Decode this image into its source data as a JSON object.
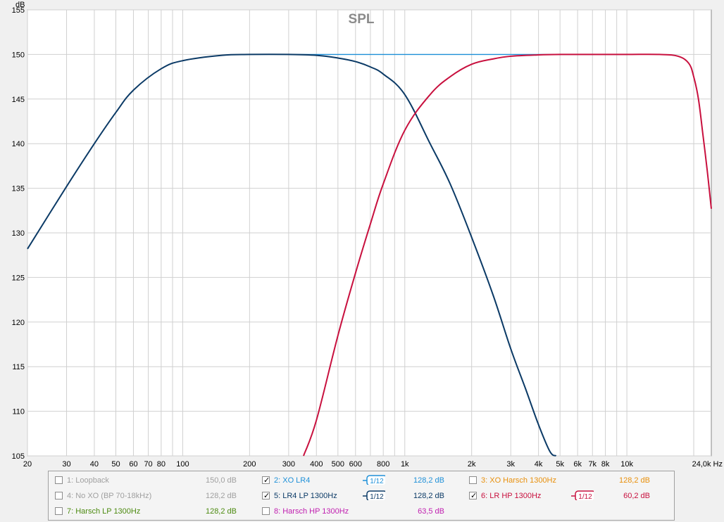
{
  "chart_data": {
    "type": "line",
    "title": "SPL",
    "ylabel": "dB",
    "xunit": "Hz",
    "xscale": "log",
    "xlim": [
      20,
      24000
    ],
    "ylim": [
      105,
      155
    ],
    "yticks": [
      105,
      110,
      115,
      120,
      125,
      130,
      135,
      140,
      145,
      150,
      155
    ],
    "xticks": [
      {
        "value": 20,
        "label": "20"
      },
      {
        "value": 30,
        "label": "30"
      },
      {
        "value": 40,
        "label": "40"
      },
      {
        "value": 50,
        "label": "50"
      },
      {
        "value": 60,
        "label": "60"
      },
      {
        "value": 70,
        "label": "70"
      },
      {
        "value": 80,
        "label": "80"
      },
      {
        "value": 100,
        "label": "100"
      },
      {
        "value": 200,
        "label": "200"
      },
      {
        "value": 300,
        "label": "300"
      },
      {
        "value": 400,
        "label": "400"
      },
      {
        "value": 500,
        "label": "500"
      },
      {
        "value": 600,
        "label": "600"
      },
      {
        "value": 800,
        "label": "800"
      },
      {
        "value": 1000,
        "label": "1k"
      },
      {
        "value": 2000,
        "label": "2k"
      },
      {
        "value": 3000,
        "label": "3k"
      },
      {
        "value": 4000,
        "label": "4k"
      },
      {
        "value": 5000,
        "label": "5k"
      },
      {
        "value": 6000,
        "label": "6k"
      },
      {
        "value": 7000,
        "label": "7k"
      },
      {
        "value": 8000,
        "label": "8k"
      },
      {
        "value": 10000,
        "label": "10k"
      },
      {
        "value": 24000,
        "label": "24,0k Hz"
      }
    ],
    "grid": true,
    "series": [
      {
        "name": "2: XO LR4",
        "color": "#1e90d8",
        "x": [
          300,
          500,
          1000,
          2000,
          5000,
          10000
        ],
        "y": [
          150.0,
          150.0,
          150.0,
          150.0,
          150.0,
          150.0
        ]
      },
      {
        "name": "5: LR4 LP 1300Hz",
        "color": "#0b3a66",
        "x": [
          20,
          30,
          40,
          50,
          60,
          80,
          100,
          150,
          200,
          300,
          400,
          500,
          600,
          700,
          800,
          1000,
          1300,
          1600,
          2000,
          2500,
          3000,
          3500,
          4000,
          4500,
          4800
        ],
        "y": [
          128.2,
          135.2,
          140.0,
          143.5,
          146.0,
          148.4,
          149.3,
          149.9,
          150.0,
          150.0,
          149.9,
          149.6,
          149.2,
          148.6,
          147.8,
          145.5,
          140.0,
          135.5,
          129.5,
          123.0,
          117.0,
          112.5,
          108.5,
          105.5,
          105.0
        ]
      },
      {
        "name": "6: LR HP 1300Hz",
        "color": "#c8103e",
        "x": [
          350,
          400,
          500,
          600,
          700,
          800,
          1000,
          1300,
          1600,
          2000,
          2500,
          3000,
          4000,
          5000,
          7000,
          10000,
          14000,
          17000,
          19000,
          20000,
          21000,
          22000,
          23000,
          24000
        ],
        "y": [
          105.0,
          109.0,
          118.5,
          125.5,
          131.0,
          135.5,
          141.5,
          145.5,
          147.5,
          148.9,
          149.5,
          149.8,
          149.95,
          150.0,
          150.0,
          150.0,
          150.0,
          149.8,
          149.0,
          147.5,
          145.0,
          141.0,
          137.0,
          132.7
        ]
      }
    ]
  },
  "legend": {
    "items": [
      {
        "label": "1: Loopback",
        "value": "150,0 dB",
        "checked": false,
        "color": "#a0a0a0",
        "smoothing": ""
      },
      {
        "label": "2: XO LR4",
        "value": "128,2 dB",
        "checked": true,
        "color": "#1e90d8",
        "smoothing": "1/12"
      },
      {
        "label": "3: XO Harsch 1300Hz",
        "value": "128,2 dB",
        "checked": false,
        "color": "#e8900c",
        "smoothing": ""
      },
      {
        "label": "4: No XO (BP 70-18kHz)",
        "value": "128,2 dB",
        "checked": false,
        "color": "#a0a0a0",
        "smoothing": ""
      },
      {
        "label": "5: LR4 LP 1300Hz",
        "value": "128,2 dB",
        "checked": true,
        "color": "#0b3a66",
        "smoothing": "1/12"
      },
      {
        "label": "6: LR HP 1300Hz",
        "value": "60,2 dB",
        "checked": true,
        "color": "#c8103e",
        "smoothing": "1/12"
      },
      {
        "label": "7: Harsch LP 1300Hz",
        "value": "128,2 dB",
        "checked": false,
        "color": "#4c8a10",
        "smoothing": ""
      },
      {
        "label": "8: Harsch HP 1300Hz",
        "value": "63,5 dB",
        "checked": false,
        "color": "#c020b0",
        "smoothing": ""
      }
    ]
  }
}
